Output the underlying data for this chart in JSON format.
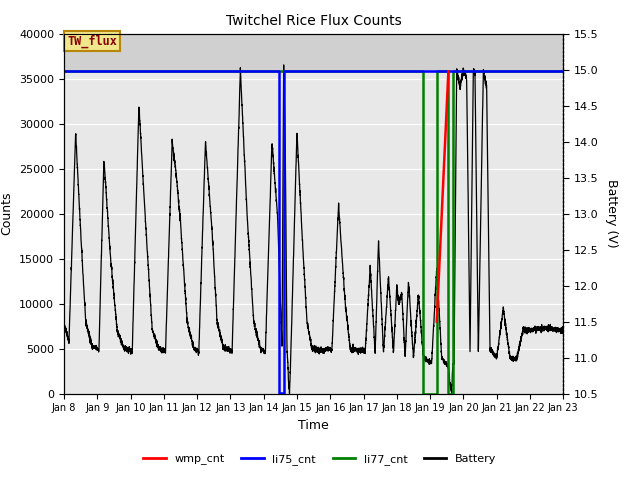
{
  "title": "Twitchel Rice Flux Counts",
  "xlabel": "Time",
  "ylabel_left": "Counts",
  "ylabel_right": "Battery (V)",
  "xlim": [
    0,
    15
  ],
  "ylim_left": [
    0,
    40000
  ],
  "ylim_right": [
    10.5,
    15.5
  ],
  "x_tick_labels": [
    "Jan 8",
    "Jan 9",
    "Jan 10",
    "Jan 11",
    "Jan 12",
    "Jan 13",
    "Jan 14",
    "Jan 15",
    "Jan 16",
    "Jan 17",
    "Jan 18",
    "Jan 19",
    "Jan 20",
    "Jan 21",
    "Jan 22",
    "Jan 23"
  ],
  "box_label": "TW_flux",
  "box_facecolor": "#f0e68c",
  "box_edgecolor": "#b8860b",
  "box_textcolor": "#8b0000",
  "bg_upper": "#d8d8d8",
  "bg_lower": "#e8e8e8",
  "grid_color": "#c8c8c8",
  "legend_items": [
    "wmp_cnt",
    "li75_cnt",
    "li77_cnt",
    "Battery"
  ],
  "legend_colors": [
    "red",
    "blue",
    "green",
    "black"
  ],
  "black_waypoints_x": [
    0.0,
    0.05,
    0.15,
    0.35,
    0.5,
    0.65,
    0.85,
    1.0,
    1.05,
    1.2,
    1.4,
    1.6,
    1.8,
    2.0,
    2.05,
    2.25,
    2.45,
    2.65,
    2.85,
    3.0,
    3.05,
    3.25,
    3.38,
    3.5,
    3.7,
    3.9,
    4.0,
    4.05,
    4.25,
    4.45,
    4.6,
    4.8,
    5.0,
    5.05,
    5.3,
    5.5,
    5.7,
    5.9,
    6.0,
    6.05,
    6.25,
    6.42,
    6.55,
    6.6,
    6.65,
    6.7,
    6.73,
    6.75,
    6.78,
    6.82,
    7.0,
    7.15,
    7.3,
    7.45,
    7.6,
    7.8,
    8.0,
    8.05,
    8.25,
    8.45,
    8.6,
    8.8,
    9.0,
    9.05,
    9.2,
    9.35,
    9.45,
    9.6,
    9.75,
    9.9,
    10.0,
    10.05,
    10.15,
    10.25,
    10.35,
    10.5,
    10.65,
    10.8,
    11.0,
    11.05,
    11.2,
    11.35,
    11.45,
    11.55,
    11.6,
    11.65,
    11.68,
    11.72,
    11.8,
    11.9,
    12.0,
    12.05,
    12.1,
    12.2,
    12.3,
    12.35,
    12.45,
    12.6,
    12.7,
    12.8,
    13.0,
    13.2,
    13.4,
    13.6,
    13.8,
    14.0,
    14.2,
    14.5,
    14.8,
    15.0
  ],
  "black_waypoints_y": [
    7500,
    7200,
    5800,
    29000,
    18000,
    8000,
    5200,
    5000,
    4800,
    26000,
    15000,
    7000,
    5000,
    4800,
    4600,
    32000,
    19000,
    7000,
    5000,
    4800,
    4600,
    28000,
    24000,
    19000,
    8000,
    5000,
    4800,
    4600,
    28000,
    18000,
    8000,
    5000,
    4800,
    4600,
    36000,
    20000,
    8000,
    5000,
    4800,
    4600,
    28000,
    19500,
    5000,
    36500,
    27000,
    5000,
    3000,
    1000,
    300,
    5000,
    29000,
    18000,
    8000,
    5000,
    4800,
    4800,
    5000,
    4800,
    21000,
    10000,
    5000,
    4800,
    4800,
    4700,
    14000,
    4500,
    17000,
    4500,
    13000,
    4500,
    12000,
    10000,
    11000,
    4000,
    12500,
    4000,
    11000,
    4000,
    3500,
    3500,
    14000,
    4000,
    3500,
    3000,
    1000,
    300,
    3000,
    3500,
    36000,
    34000,
    36000,
    35500,
    35000,
    4500,
    36000,
    35500,
    4500,
    36000,
    34000,
    5000,
    4000,
    9500,
    4000,
    3800,
    7200,
    7000,
    7200,
    7300,
    7100,
    7000
  ],
  "green_x": [
    0.0,
    10.8,
    10.8,
    11.2,
    11.2,
    11.55,
    11.55,
    11.7,
    11.7,
    15.0
  ],
  "green_y": [
    35800,
    35800,
    0,
    0,
    35800,
    35800,
    0,
    0,
    35800,
    35800
  ],
  "blue_x": [
    0.0,
    6.45,
    6.45,
    6.6,
    6.6,
    7.6,
    7.6,
    15.0
  ],
  "blue_y": [
    35800,
    35800,
    100,
    100,
    35800,
    35800,
    35800,
    35800
  ],
  "red_x": [
    11.2,
    11.55
  ],
  "red_y": [
    8000,
    35800
  ]
}
